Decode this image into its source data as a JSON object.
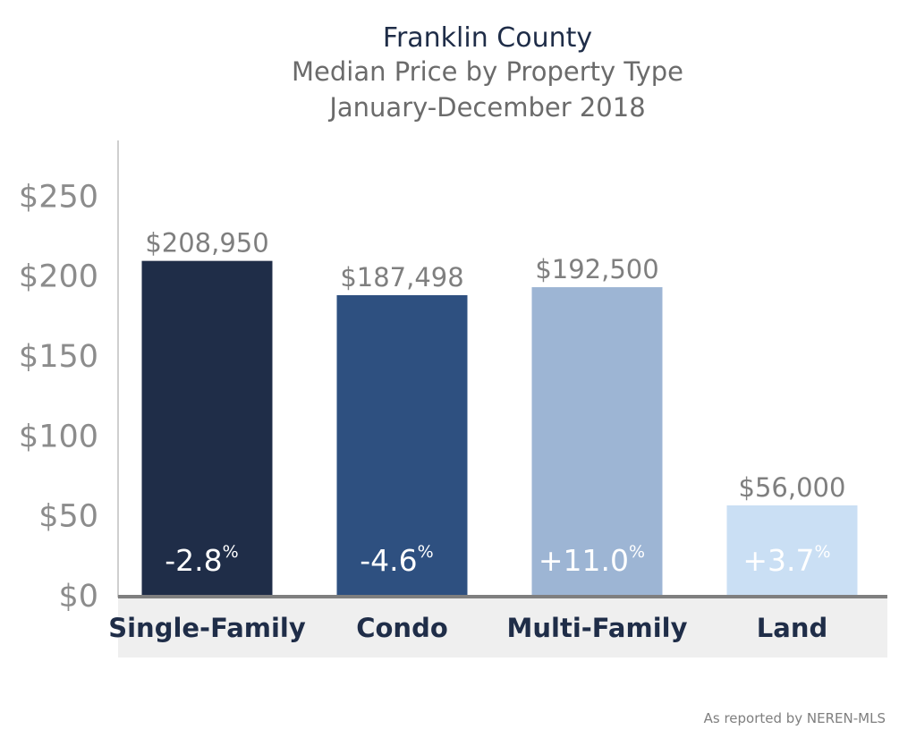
{
  "chart_data": {
    "type": "bar",
    "title": "Franklin County",
    "subtitle": [
      "Median Price by Property Type",
      "January-December 2018"
    ],
    "xlabel": "",
    "ylabel": "",
    "ylim": [
      0,
      280
    ],
    "yticks": [
      0,
      50,
      100,
      150,
      200,
      250
    ],
    "ytick_labels": [
      "$0",
      "$50",
      "$100",
      "$150",
      "$200",
      "$250"
    ],
    "grid": false,
    "categories": [
      "Single-Family",
      "Condo",
      "Multi-Family",
      "Land"
    ],
    "values": [
      208.95,
      187.498,
      192.5,
      56.0
    ],
    "value_labels": [
      "$208,950",
      "$187,498",
      "$192,500",
      "$56,000"
    ],
    "change_labels": [
      "-2.8",
      "-4.6",
      "+11.0",
      "+3.7"
    ],
    "change_unit": "%",
    "colors": [
      "#1f2d48",
      "#2e5080",
      "#9db5d4",
      "#cadff4"
    ]
  },
  "footer": {
    "source": "As reported by NEREN-MLS"
  },
  "colors": {
    "axis": "#7f7f7f",
    "tick_text": "#8c8c8c",
    "title": "#1f2d48",
    "subtitle": "#6b6b6b",
    "category_band": "#efefef",
    "category_text": "#1f2d48"
  }
}
